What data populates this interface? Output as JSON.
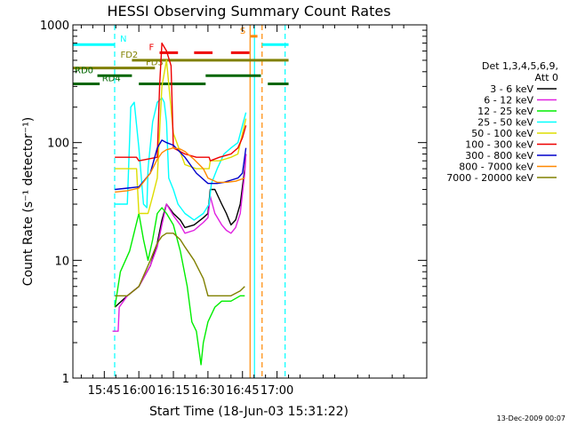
{
  "chart_data": {
    "type": "line",
    "title": "HESSI Observing Summary Count Rates",
    "xlabel": "Start Time (18-Jun-03 15:31:22)",
    "ylabel": "Count Rate (s⁻¹ detector⁻¹)",
    "x_unit": "minutes of day (UT)",
    "xlim": [
      931.37,
      1085
    ],
    "ylim": [
      1,
      1000
    ],
    "y_scale": "log",
    "x_ticks": [
      {
        "value": 945,
        "label": "15:45"
      },
      {
        "value": 960,
        "label": "16:00"
      },
      {
        "value": 975,
        "label": "16:15"
      },
      {
        "value": 990,
        "label": "16:30"
      },
      {
        "value": 1005,
        "label": "16:45"
      },
      {
        "value": 1020,
        "label": "17:00"
      }
    ],
    "y_ticks": [
      {
        "value": 1,
        "label": "1"
      },
      {
        "value": 10,
        "label": "10"
      },
      {
        "value": 100,
        "label": "100"
      },
      {
        "value": 1000,
        "label": "1000"
      }
    ],
    "legend": {
      "header": [
        "Det 1,3,4,5,6,9,",
        "Att 0"
      ],
      "placement": "right"
    },
    "series": [
      {
        "name": "3 - 6 keV",
        "color": "#000000",
        "x": [
          931.4,
          949.5,
          949.6,
          955,
          960,
          965,
          968,
          970,
          972,
          975,
          978,
          980,
          984,
          988,
          990,
          991,
          993,
          996,
          998,
          1000,
          1002,
          1004,
          1006,
          1006.5
        ],
        "y": [
          null,
          null,
          4,
          5,
          6,
          9,
          14,
          22,
          30,
          25,
          22,
          19,
          20,
          23,
          25,
          40,
          40,
          30,
          25,
          20,
          22,
          30,
          60,
          80
        ]
      },
      {
        "name": "6 - 12 keV",
        "color": "#e020e0",
        "x": [
          931.4,
          948.5,
          948.6,
          951,
          951.5,
          955,
          960,
          965,
          968,
          970,
          972,
          975,
          978,
          980,
          984,
          988,
          990,
          991,
          993,
          996,
          998,
          1000,
          1002,
          1004,
          1006,
          1006.5
        ],
        "y": [
          null,
          null,
          2.5,
          2.5,
          4,
          5,
          6,
          9,
          13,
          20,
          30,
          24,
          20,
          17,
          18,
          21,
          23,
          35,
          25,
          20,
          18,
          17,
          19,
          25,
          55,
          80
        ]
      },
      {
        "name": "12 - 25 keV",
        "color": "#00ee00",
        "x": [
          931.4,
          949.5,
          949.6,
          952,
          956,
          960,
          962,
          964,
          966,
          968,
          970,
          972,
          975,
          978,
          981,
          983,
          985,
          986,
          987,
          988,
          990,
          993,
          996,
          1000,
          1004,
          1006
        ],
        "y": [
          null,
          null,
          4,
          8,
          12,
          25,
          15,
          10,
          15,
          25,
          28,
          25,
          20,
          12,
          6,
          3,
          2.5,
          1.8,
          1.3,
          2,
          3,
          4,
          4.5,
          4.5,
          5,
          5
        ]
      },
      {
        "name": "25 - 50 keV",
        "color": "#00ffff",
        "x": [
          931.4,
          949.5,
          949.6,
          953,
          955,
          956.5,
          958,
          960,
          962,
          963.5,
          964,
          966,
          968,
          970,
          971,
          972,
          973,
          975,
          977,
          980,
          984,
          988,
          990.5,
          991.5,
          994,
          997,
          1000,
          1003,
          1005,
          1006.5
        ],
        "y": [
          null,
          null,
          30,
          30,
          30,
          200,
          220,
          90,
          30,
          28,
          60,
          150,
          220,
          240,
          220,
          150,
          50,
          40,
          30,
          25,
          22,
          25,
          30,
          45,
          60,
          80,
          90,
          100,
          140,
          180
        ]
      },
      {
        "name": "50 - 100 keV",
        "color": "#dddd00",
        "x": [
          931.4,
          949.5,
          949.6,
          956,
          959,
          960,
          962,
          964,
          966,
          968,
          970,
          972,
          975,
          980,
          985,
          988,
          990.5,
          991,
          995,
          1000,
          1003,
          1005,
          1006.5
        ],
        "y": [
          null,
          null,
          60,
          60,
          60,
          25,
          25,
          25,
          35,
          50,
          300,
          500,
          120,
          65,
          60,
          60,
          60,
          70,
          70,
          75,
          80,
          120,
          160
        ]
      },
      {
        "name": "100 - 300 keV",
        "color": "#ee0000",
        "x": [
          931.4,
          949.5,
          949.6,
          959,
          960,
          968,
          969,
          970,
          972,
          974,
          975,
          980,
          985,
          990.5,
          991,
          995,
          1000,
          1003,
          1005,
          1006.5
        ],
        "y": [
          null,
          null,
          75,
          75,
          70,
          75,
          300,
          700,
          600,
          450,
          90,
          80,
          75,
          75,
          70,
          75,
          80,
          90,
          110,
          140
        ]
      },
      {
        "name": "300 - 800 keV",
        "color": "#0000cc",
        "x": [
          931.4,
          949.5,
          949.6,
          955,
          960,
          965,
          968,
          970,
          972,
          975,
          980,
          985,
          990,
          992,
          994,
          997,
          1000,
          1003,
          1005,
          1006.5
        ],
        "y": [
          null,
          null,
          40,
          41,
          42,
          55,
          90,
          105,
          100,
          95,
          75,
          55,
          45,
          45,
          45,
          46,
          48,
          50,
          55,
          90
        ]
      },
      {
        "name": "800 - 7000 keV",
        "color": "#ff8800",
        "x": [
          931.4,
          949.5,
          949.6,
          955,
          960,
          965,
          968,
          970,
          972,
          975,
          978,
          980,
          984,
          988,
          990,
          994,
          998,
          1002,
          1006
        ],
        "y": [
          null,
          null,
          38,
          39,
          41,
          55,
          72,
          82,
          87,
          90,
          88,
          84,
          72,
          60,
          50,
          46,
          46,
          47,
          50
        ]
      },
      {
        "name": "7000 - 20000 keV",
        "color": "#808000",
        "x": [
          931.4,
          949.5,
          949.6,
          955,
          960,
          965,
          968,
          970,
          972,
          975,
          978,
          980,
          984,
          988,
          990,
          995,
          1000,
          1004,
          1006
        ],
        "y": [
          null,
          null,
          5,
          5,
          6,
          10,
          14,
          16,
          17,
          17,
          15,
          13,
          10,
          7,
          5,
          5,
          5,
          5.5,
          6
        ]
      }
    ],
    "flag_bars": [
      {
        "label": "N",
        "color": "#00ffff",
        "y": 680,
        "segments": [
          [
            931.4,
            949.5
          ],
          [
            1013.5,
            1025
          ]
        ]
      },
      {
        "label": "F",
        "color": "#ee0000",
        "y": 580,
        "segments": [
          [
            969,
            977
          ],
          [
            984,
            992
          ],
          [
            1000,
            1008
          ]
        ]
      },
      {
        "label": "FD2",
        "color": "#808000",
        "y": 500,
        "segments": [
          [
            957,
            1025
          ]
        ]
      },
      {
        "label": "FD3",
        "color": "#808000",
        "y": 430,
        "segments": [
          [
            931.4,
            967
          ]
        ]
      },
      {
        "label": "RD0",
        "color": "#006600",
        "y": 370,
        "segments": [
          [
            942,
            957
          ],
          [
            989,
            1013
          ]
        ]
      },
      {
        "label": "RD4",
        "color": "#006600",
        "y": 315,
        "segments": [
          [
            931.4,
            943
          ],
          [
            960,
            989
          ],
          [
            1016,
            1025
          ]
        ]
      },
      {
        "label": "S",
        "color": "#ff8800",
        "y": 800,
        "segments": [
          [
            1008.5,
            1011.5
          ]
        ]
      }
    ],
    "markers": [
      {
        "x": 949.5,
        "color": "#00ffff",
        "style": "dashed"
      },
      {
        "x": 1008.3,
        "color": "#ff8800",
        "style": "solid"
      },
      {
        "x": 1010.2,
        "color": "#00ffff",
        "style": "solid"
      },
      {
        "x": 1013.5,
        "color": "#ff8800",
        "style": "dashed"
      },
      {
        "x": 1023.5,
        "color": "#00ffff",
        "style": "dashed"
      }
    ],
    "grid": false
  },
  "footer": "13-Dec-2009 00:07"
}
